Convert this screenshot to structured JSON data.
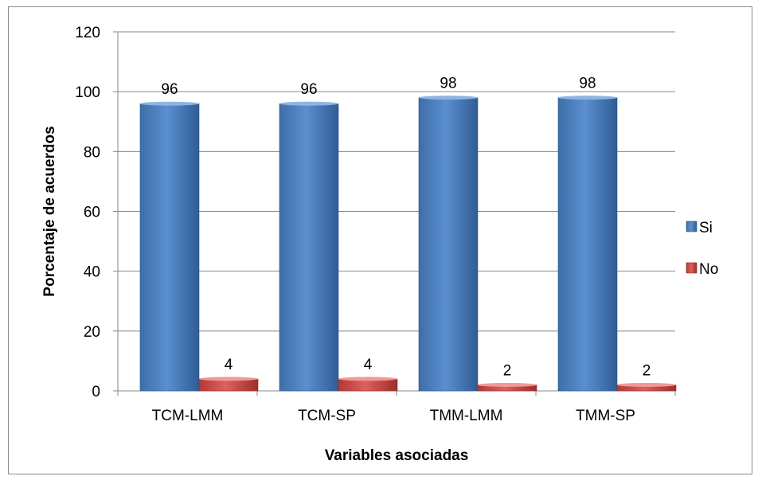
{
  "chart_data": {
    "type": "bar",
    "title": "",
    "xlabel": "Variables asociadas",
    "ylabel": "Porcentaje de acuerdos",
    "categories": [
      "TCM-LMM",
      "TCM-SP",
      "TMM-LMM",
      "TMM-SP"
    ],
    "series": [
      {
        "name": "Si",
        "values": [
          96,
          96,
          98,
          98
        ],
        "color": "#4f81bd"
      },
      {
        "name": "No",
        "values": [
          4,
          4,
          2,
          2
        ],
        "color": "#c0504d"
      }
    ],
    "ylim": [
      0,
      120
    ],
    "yticks": [
      0,
      20,
      40,
      60,
      80,
      100,
      120
    ],
    "grid": true,
    "legend": "right",
    "style": "3d-cylinder-bar"
  }
}
